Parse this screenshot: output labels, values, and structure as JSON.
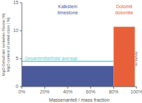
{
  "chart_data": {
    "type": "bar",
    "xlabel": "Massenanteil / mass fraction",
    "ylabel": "MgO-Gehalt der sortierten Klasse [%]\nMgO content of sorted class [ %]",
    "x": [
      0.0,
      0.8
    ],
    "widths": [
      0.8,
      0.185
    ],
    "values": [
      3.7,
      10.7
    ],
    "colors": [
      "#4a5a9a",
      "#e8603a"
    ],
    "reference_line": {
      "value": 4.55,
      "xmin": 0,
      "xmax": 0.8,
      "label": "Gesamtmittel/total average",
      "color": "#5ecece"
    },
    "annotations": [
      {
        "text": "Kalkstein\nlimestone",
        "color": "#4a5a9a"
      },
      {
        "text": "Dolomit\ndolomite",
        "color": "#e8603a"
      },
      {
        "text": "no survey",
        "color": "#555555"
      }
    ],
    "xlim": [
      0,
      1.0
    ],
    "xticks": [
      {
        "value": 0.0,
        "label": "0%"
      },
      {
        "value": 0.2,
        "label": "20%"
      },
      {
        "value": 0.4,
        "label": "40%"
      },
      {
        "value": 0.6,
        "label": "60%"
      },
      {
        "value": 0.8,
        "label": "80%"
      },
      {
        "value": 1.0,
        "label": "100%"
      }
    ],
    "ylim": [
      0,
      15
    ],
    "yticks": [
      0,
      5,
      10,
      15
    ],
    "grid": false
  }
}
